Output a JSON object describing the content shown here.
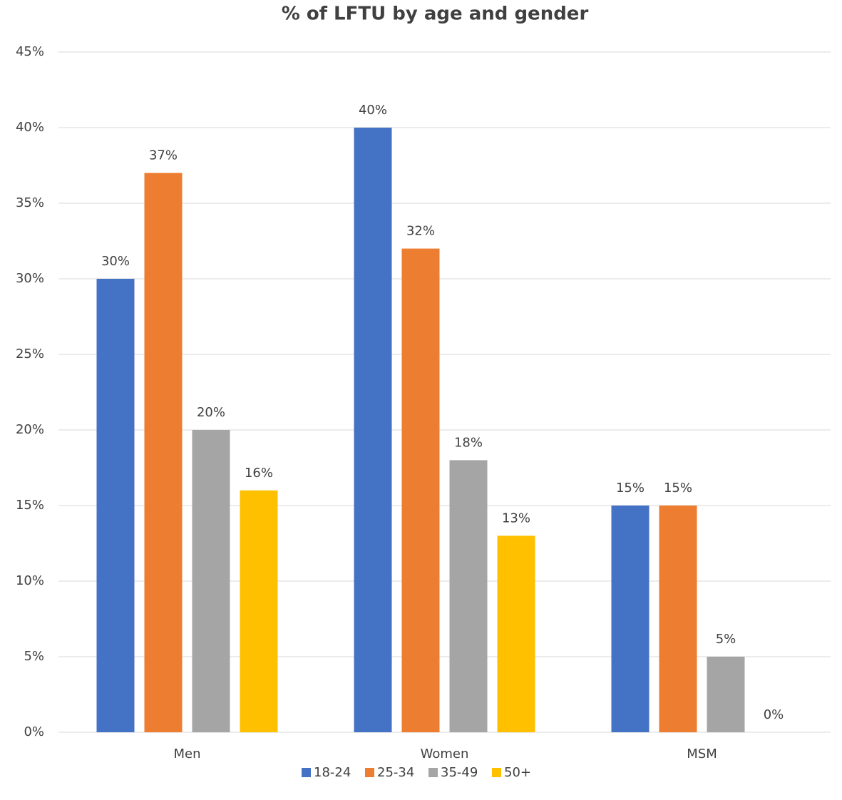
{
  "chart_data": {
    "type": "bar",
    "title": "% of LFTU by age and gender",
    "categories": [
      "Men",
      "Women",
      "MSM"
    ],
    "series": [
      {
        "name": "18-24",
        "color": "#4472c4",
        "values": [
          30,
          40,
          15
        ],
        "value_labels": [
          "30%",
          "40%",
          "15%"
        ]
      },
      {
        "name": "25-34",
        "color": "#ed7d31",
        "values": [
          37,
          32,
          15
        ],
        "value_labels": [
          "37%",
          "32%",
          "15%"
        ]
      },
      {
        "name": "35-49",
        "color": "#a5a5a5",
        "values": [
          20,
          18,
          5
        ],
        "value_labels": [
          "20%",
          "18%",
          "5%"
        ]
      },
      {
        "name": "50+",
        "color": "#ffc000",
        "values": [
          16,
          13,
          0
        ],
        "value_labels": [
          "16%",
          "13%",
          "0%"
        ]
      }
    ],
    "ylim": [
      0,
      45
    ],
    "yticks": [
      {
        "value": 0,
        "label": "0%"
      },
      {
        "value": 5,
        "label": "5%"
      },
      {
        "value": 10,
        "label": "10%"
      },
      {
        "value": 15,
        "label": "15%"
      },
      {
        "value": 20,
        "label": "20%"
      },
      {
        "value": 25,
        "label": "25%"
      },
      {
        "value": 30,
        "label": "30%"
      },
      {
        "value": 35,
        "label": "35%"
      },
      {
        "value": 40,
        "label": "40%"
      },
      {
        "value": 45,
        "label": "45%"
      }
    ],
    "grid": true,
    "legend": "bottom"
  }
}
